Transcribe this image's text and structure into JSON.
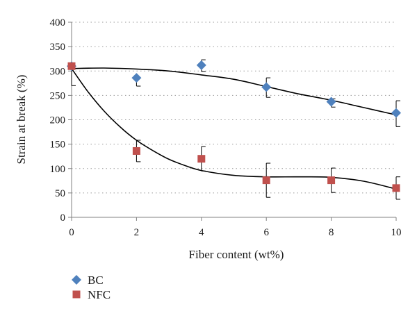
{
  "chart_data": {
    "type": "scatter",
    "title": "",
    "xlabel": "Fiber content (wt%)",
    "ylabel": "Strain at break (%)",
    "xlim": [
      0,
      10
    ],
    "ylim": [
      0,
      400
    ],
    "xticks": [
      0,
      2,
      4,
      6,
      8,
      10
    ],
    "yticks": [
      0,
      50,
      100,
      150,
      200,
      250,
      300,
      350,
      400
    ],
    "grid": "horizontal dotted",
    "legend": "bottom-left",
    "series": [
      {
        "name": "BC",
        "marker": "diamond",
        "color": "#4f81bd",
        "x": [
          0,
          2,
          4,
          6,
          8,
          10
        ],
        "y": [
          310,
          286,
          312,
          267,
          237,
          214
        ],
        "err_low": [
          40,
          17,
          13,
          21,
          11,
          28
        ],
        "err_high": [
          0,
          0,
          11,
          19,
          6,
          25
        ],
        "trend": [
          [
            0,
            305
          ],
          [
            1,
            306
          ],
          [
            2,
            304
          ],
          [
            3,
            300
          ],
          [
            4,
            292
          ],
          [
            5,
            283
          ],
          [
            6,
            268
          ],
          [
            7,
            253
          ],
          [
            8,
            240
          ],
          [
            9,
            225
          ],
          [
            10,
            210
          ]
        ]
      },
      {
        "name": "NFC",
        "marker": "square",
        "color": "#c0504d",
        "x": [
          0,
          2,
          4,
          6,
          8,
          10
        ],
        "y": [
          310,
          136,
          120,
          76,
          76,
          60
        ],
        "err_low": [
          0,
          22,
          25,
          35,
          25,
          23
        ],
        "err_high": [
          0,
          22,
          25,
          35,
          25,
          23
        ],
        "trend": [
          [
            0,
            305
          ],
          [
            0.5,
            258
          ],
          [
            1,
            218
          ],
          [
            1.5,
            185
          ],
          [
            2,
            158
          ],
          [
            2.5,
            137
          ],
          [
            3,
            119
          ],
          [
            3.5,
            106
          ],
          [
            4,
            96
          ],
          [
            5,
            86
          ],
          [
            6,
            83
          ],
          [
            7,
            83
          ],
          [
            8,
            82
          ],
          [
            9,
            74
          ],
          [
            10,
            58
          ]
        ]
      }
    ]
  }
}
